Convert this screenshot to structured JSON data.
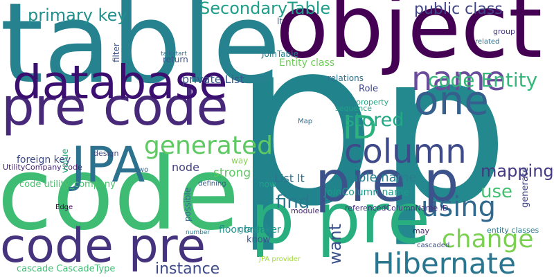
{
  "words": [
    "p",
    "p",
    "table",
    "object",
    "code",
    "pre code",
    "database",
    "JPA",
    "code pre",
    "p pre",
    "pre p",
    "one",
    "name",
    "ID",
    "column",
    "generated",
    "Hibernate",
    "using",
    "change",
    "code Entity",
    "primary key",
    "SecondaryTable",
    "public class",
    "stored",
    "find",
    "want",
    "mapping",
    "use",
    "instance",
    "Table name",
    "JoinColumn name",
    "List lt",
    "strong",
    "node",
    "private List",
    "foreign key",
    "UtilityCompany code",
    "code utility_company",
    "cascade CascadeType",
    "Entity class",
    "floor breaker",
    "JoinTable",
    "Role",
    "relations",
    "entity classes",
    "referencedColumnName ID",
    "module",
    "value",
    "generate",
    "know",
    "graph",
    "JPA provider",
    "filter",
    "return",
    "talkstart",
    "group",
    "related",
    "possible",
    "design",
    "Map",
    "sequence",
    "property",
    "lt",
    "Edge",
    "defining",
    "way",
    "number",
    "two",
    "cascaded",
    "may",
    "now"
  ]
}
